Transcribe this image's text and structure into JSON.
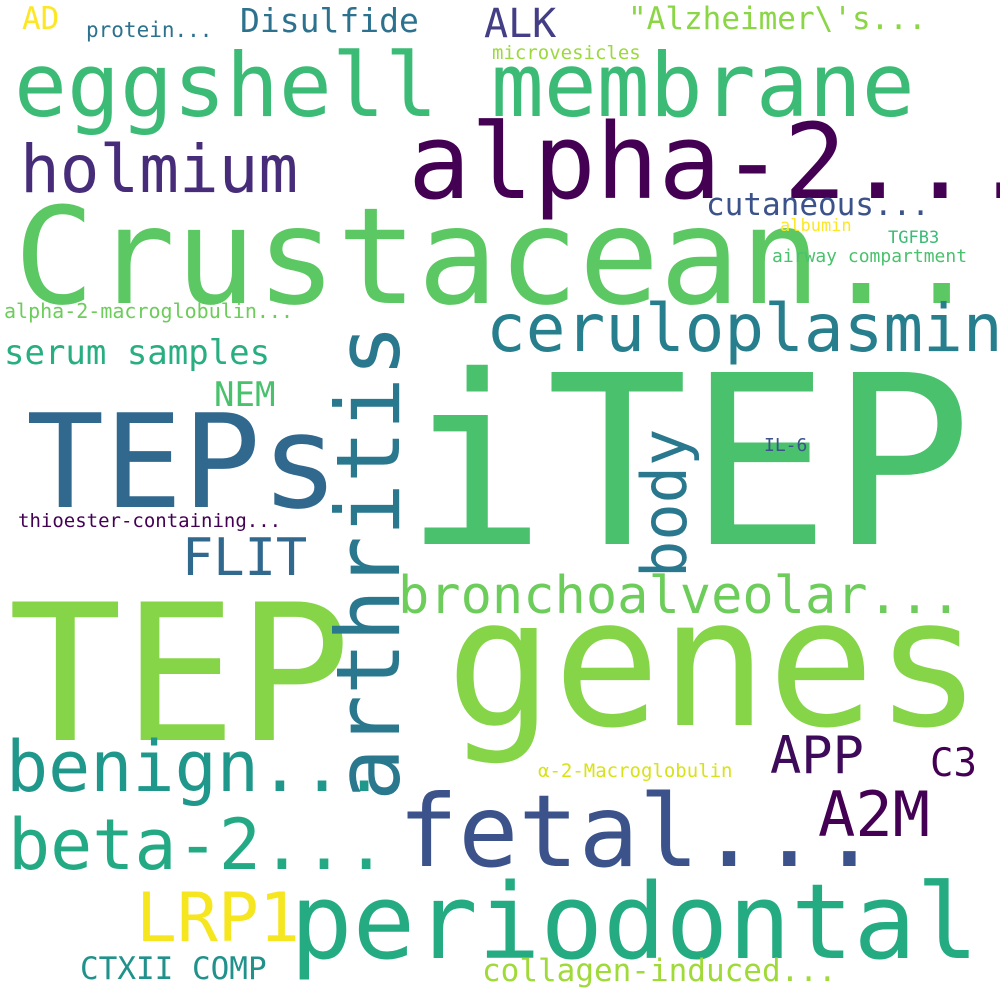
{
  "palette": {
    "dark_purple": "#440154",
    "indigo": "#46327e",
    "blue": "#365c8d",
    "teal_blue": "#277f8e",
    "teal": "#1fa187",
    "green": "#4ac16d",
    "light_green": "#a0da39",
    "yellow": "#fde725"
  },
  "words": {
    "itep": "iTEP",
    "crustacean": "Crustacean...",
    "tep": "TEP",
    "genes": "genes",
    "eggshell": "eggshell membrane",
    "alpha2": "alpha-2...",
    "teps": "TEPs",
    "arthritis": "arthritis",
    "fetal": "fetal...",
    "periodontal": "periodontal",
    "ceruloplasmin": "ceruloplasmin",
    "holmium": "holmium",
    "benign": "benign...",
    "beta2": "beta-2...",
    "bronchoalveolar": "bronchoalveolar...",
    "body": "body",
    "a2m": "A2M",
    "lrp1": "LRP1",
    "app": "APP",
    "flit": "FLIT",
    "disulfide": "Disulfide",
    "alk": "ALK",
    "alzheimers": "\"Alzheimer\\'s...",
    "cutaneous": "cutaneous...",
    "serum_samples": "serum samples",
    "collagen": "collagen-induced...",
    "ctxii": "CTXII COMP",
    "c3": "C3",
    "nem": "NEM",
    "ad": "AD",
    "protein": "protein...",
    "microvesicles": "microvesicles",
    "alpha2_macroglobulin": "alpha-2-macroglobulin...",
    "thioester": "thioester-containing...",
    "airway": "airway compartment",
    "albumin": "albumin",
    "tgfb3": "TGFB3",
    "il6": "IL-6",
    "alpha_macroglobulin": "α-2-Macroglobulin"
  }
}
